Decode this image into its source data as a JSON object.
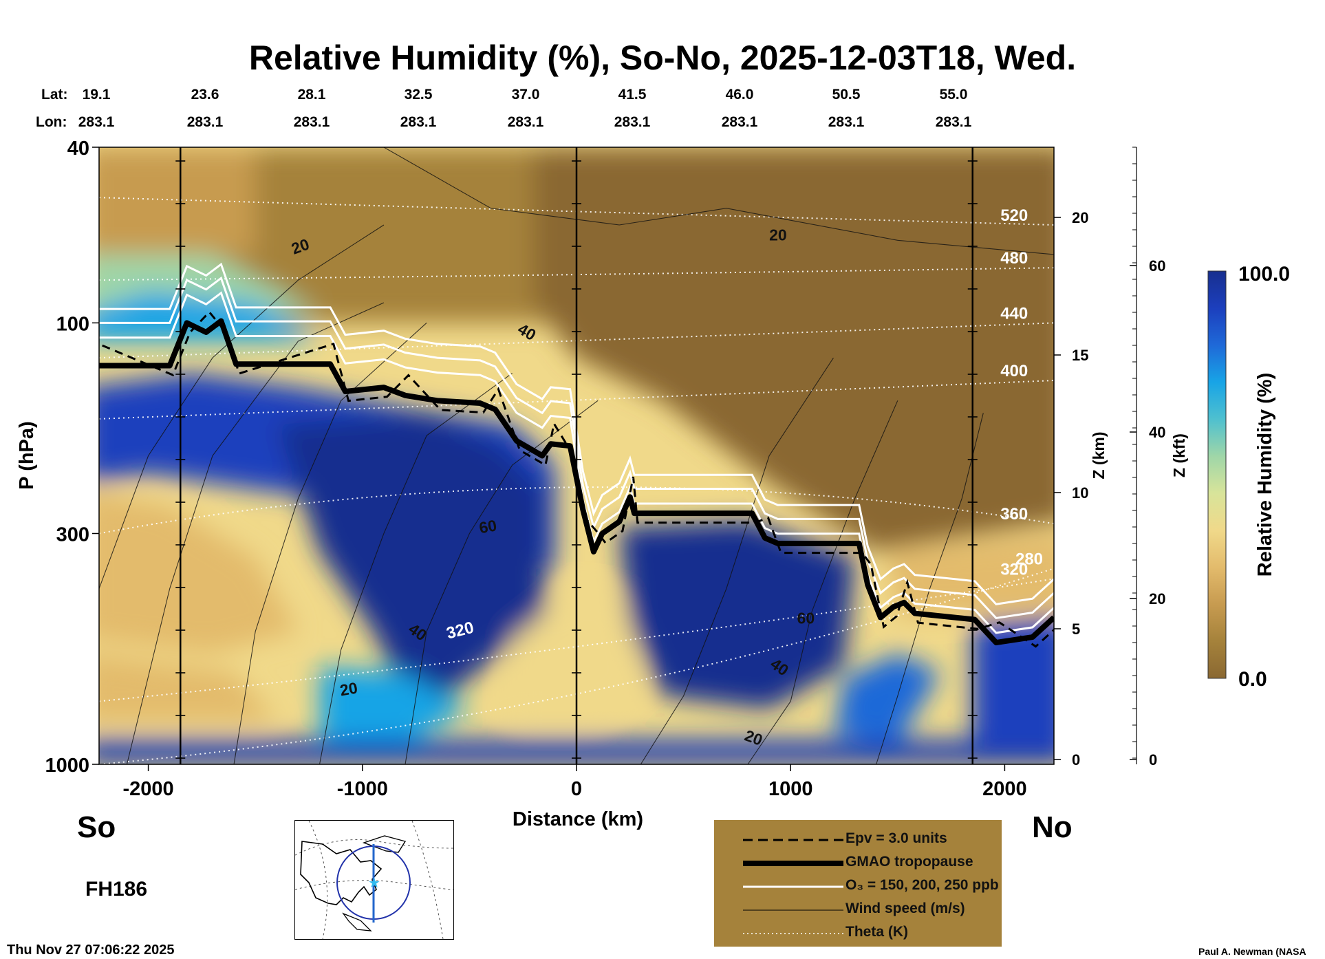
{
  "title": "Relative Humidity (%), So-No, 2025-12-03T18, Wed.",
  "coords": {
    "lat_label": "Lat:",
    "lon_label": "Lon:",
    "lat": [
      "19.1",
      "23.6",
      "28.1",
      "32.5",
      "37.0",
      "41.5",
      "46.0",
      "50.5",
      "55.0"
    ],
    "lon": [
      "283.1",
      "283.1",
      "283.1",
      "283.1",
      "283.1",
      "283.1",
      "283.1",
      "283.1",
      "283.1"
    ]
  },
  "labels": {
    "so": "So",
    "no": "No",
    "forecast_hour": "FH186",
    "run_time": "Thu Nov 27 07:06:22 2025",
    "credit": "Paul A. Newman (NASA"
  },
  "legend": [
    {
      "label": "Epv = 3.0 units",
      "style": "dashed",
      "color": "#000000"
    },
    {
      "label": "GMAO tropopause",
      "style": "thick",
      "color": "#000000"
    },
    {
      "label": "O₃ = 150, 200, 250 ppb",
      "style": "solid",
      "color": "#ffffff"
    },
    {
      "label": "Wind speed (m/s)",
      "style": "thin",
      "color": "#000000"
    },
    {
      "label": "Theta (K)",
      "style": "dotted",
      "color": "#ffffff"
    }
  ],
  "colorbar": {
    "label": "Relative Humidity (%)",
    "max_label": "100.0",
    "min_label": "0.0",
    "colors": [
      "#8a6832",
      "#a5823b",
      "#c79b50",
      "#e3bb6c",
      "#f0d98a",
      "#d8e49a",
      "#9fd6a8",
      "#4fc0cf",
      "#18a4e6",
      "#1f69d8",
      "#1c3fbd",
      "#182f8f"
    ]
  },
  "chart_data": {
    "type": "heatmap",
    "title": "Relative Humidity (%), So-No, 2025-12-03T18, Wed.",
    "xlabel": "Distance (km)",
    "ylabel": "P (hPa)",
    "y2label": "Z (km)",
    "y3label": "Z (kft)",
    "xlim": [
      -2230,
      2230
    ],
    "ylim": [
      1000,
      40
    ],
    "yscale": "log",
    "x_ticks": [
      -2000,
      -1000,
      0,
      1000,
      2000
    ],
    "p_ticks": [
      1000,
      300,
      100,
      40
    ],
    "z_km_ticks": [
      0,
      5,
      10,
      15,
      20
    ],
    "z_kft_ticks": [
      0,
      20,
      40,
      60
    ],
    "vertical_markers_km": [
      -1850,
      0,
      1850
    ],
    "tropopause": [
      {
        "x": -2230,
        "p": 125
      },
      {
        "x": -1900,
        "p": 125
      },
      {
        "x": -1820,
        "p": 100
      },
      {
        "x": -1730,
        "p": 105
      },
      {
        "x": -1660,
        "p": 99
      },
      {
        "x": -1590,
        "p": 124
      },
      {
        "x": -1150,
        "p": 124
      },
      {
        "x": -1080,
        "p": 143
      },
      {
        "x": -900,
        "p": 140
      },
      {
        "x": -800,
        "p": 146
      },
      {
        "x": -650,
        "p": 150
      },
      {
        "x": -450,
        "p": 152
      },
      {
        "x": -380,
        "p": 157
      },
      {
        "x": -280,
        "p": 185
      },
      {
        "x": -160,
        "p": 200
      },
      {
        "x": -120,
        "p": 188
      },
      {
        "x": -30,
        "p": 190
      },
      {
        "x": 30,
        "p": 265
      },
      {
        "x": 80,
        "p": 330
      },
      {
        "x": 120,
        "p": 300
      },
      {
        "x": 200,
        "p": 282
      },
      {
        "x": 250,
        "p": 248
      },
      {
        "x": 270,
        "p": 270
      },
      {
        "x": 820,
        "p": 270
      },
      {
        "x": 880,
        "p": 307
      },
      {
        "x": 940,
        "p": 316
      },
      {
        "x": 1320,
        "p": 316
      },
      {
        "x": 1360,
        "p": 392
      },
      {
        "x": 1420,
        "p": 465
      },
      {
        "x": 1480,
        "p": 440
      },
      {
        "x": 1530,
        "p": 430
      },
      {
        "x": 1580,
        "p": 455
      },
      {
        "x": 1860,
        "p": 470
      },
      {
        "x": 1960,
        "p": 530
      },
      {
        "x": 2130,
        "p": 515
      },
      {
        "x": 2230,
        "p": 465
      }
    ],
    "theta_contours": [
      {
        "label": "280",
        "level": 280
      },
      {
        "label": "320",
        "level": 320
      },
      {
        "label": "360",
        "level": 360
      },
      {
        "label": "400",
        "level": 400
      },
      {
        "label": "440",
        "level": 440
      },
      {
        "label": "480",
        "level": 480
      },
      {
        "label": "520",
        "level": 520
      }
    ],
    "wind_contour_labels": [
      "20",
      "40",
      "60"
    ]
  }
}
